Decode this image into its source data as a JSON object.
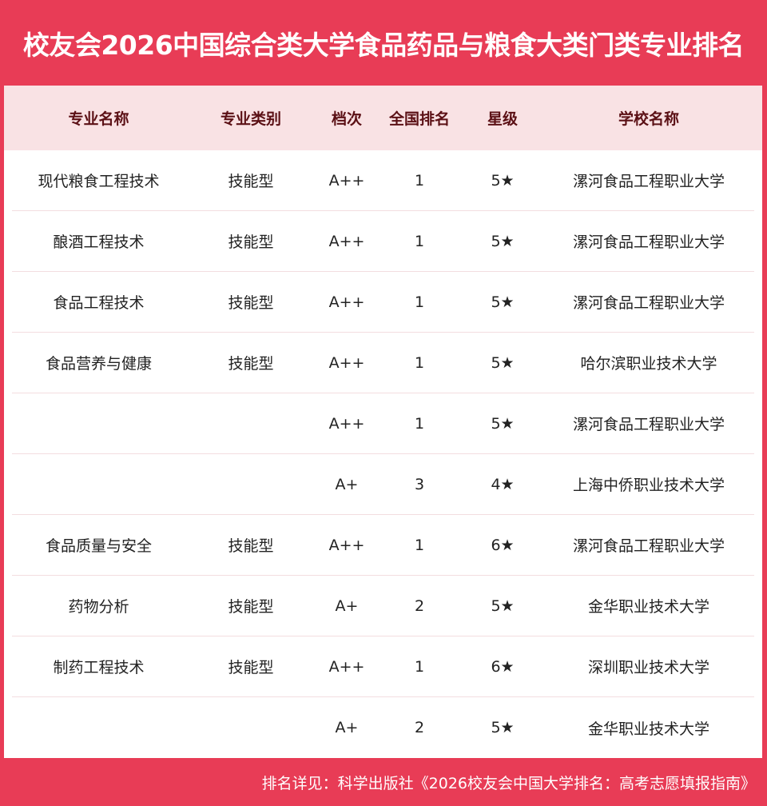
{
  "title": "校友会2026中国综合类大学食品药品与粮食大类门类专业排名",
  "headers": [
    "专业名称",
    "专业类别",
    "档次",
    "全国排名",
    "星级",
    "学校名称"
  ],
  "rows": [
    [
      "现代粮食工程技术",
      "技能型",
      "A++",
      "1",
      "5★",
      "漯河食品工程职业大学"
    ],
    [
      "酿酒工程技术",
      "技能型",
      "A++",
      "1",
      "5★",
      "漯河食品工程职业大学"
    ],
    [
      "食品工程技术",
      "技能型",
      "A++",
      "1",
      "5★",
      "漯河食品工程职业大学"
    ],
    [
      "食品营养与健康",
      "技能型",
      "A++",
      "1",
      "5★",
      "哈尔滨职业技术大学"
    ],
    [
      "",
      "",
      "A++",
      "1",
      "5★",
      "漯河食品工程职业大学"
    ],
    [
      "",
      "",
      "A+",
      "3",
      "4★",
      "上海中侨职业技术大学"
    ],
    [
      "食品质量与安全",
      "技能型",
      "A++",
      "1",
      "6★",
      "漯河食品工程职业大学"
    ],
    [
      "药物分析",
      "技能型",
      "A+",
      "2",
      "5★",
      "金华职业技术大学"
    ],
    [
      "制药工程技术",
      "技能型",
      "A++",
      "1",
      "6★",
      "深圳职业技术大学"
    ],
    [
      "",
      "",
      "A+",
      "2",
      "5★",
      "金华职业技术大学"
    ]
  ],
  "footer": "排名详见：科学出版社《2026校友会中国大学排名：高考志愿填报指南》",
  "colors": {
    "brand": "#e83c56",
    "header_bg": "#f9e2e4",
    "header_text": "#5b1015"
  }
}
